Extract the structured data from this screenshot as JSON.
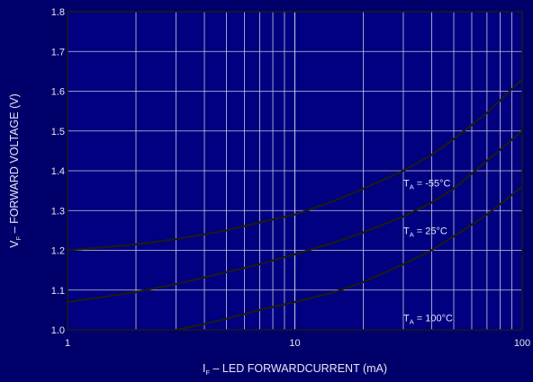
{
  "chart_data": {
    "type": "line",
    "title": "",
    "xscale": "log",
    "xlim": [
      1,
      100
    ],
    "ylim": [
      1.0,
      1.8
    ],
    "x_ticks": [
      "1",
      "10",
      "100"
    ],
    "y_ticks": [
      "1.0",
      "1.1",
      "1.2",
      "1.3",
      "1.4",
      "1.5",
      "1.6",
      "1.7",
      "1.8"
    ],
    "xlabel": {
      "main": "I",
      "sub": "F",
      "rest": " – LED FORWARDCURRENT (mA)"
    },
    "ylabel": {
      "main": "V",
      "sub": "F",
      "rest": " – FORWARD VOLTAGE (V)"
    },
    "grid": true,
    "colors": {
      "background": "#00006b",
      "plot_area": "#000080",
      "grid": "#c8c8dc",
      "curve": "#1a1a1a",
      "text": "#e6e6f4"
    },
    "series": [
      {
        "label": {
          "main": "T",
          "sub": "A",
          "rest": " = -55°C"
        },
        "label_at": [
          30,
          1.37
        ],
        "x": [
          1,
          2,
          3,
          5,
          7,
          10,
          15,
          20,
          30,
          40,
          50,
          70,
          100
        ],
        "y": [
          1.2,
          1.215,
          1.228,
          1.25,
          1.27,
          1.29,
          1.325,
          1.355,
          1.4,
          1.44,
          1.48,
          1.545,
          1.63
        ]
      },
      {
        "label": {
          "main": "T",
          "sub": "A",
          "rest": " = 25°C"
        },
        "label_at": [
          30,
          1.25
        ],
        "x": [
          1,
          2,
          3,
          5,
          7,
          10,
          15,
          20,
          30,
          40,
          50,
          70,
          100
        ],
        "y": [
          1.07,
          1.095,
          1.115,
          1.145,
          1.165,
          1.19,
          1.22,
          1.245,
          1.285,
          1.32,
          1.355,
          1.425,
          1.5
        ]
      },
      {
        "label": {
          "main": "T",
          "sub": "A",
          "rest": " = 100°C"
        },
        "label_at": [
          30,
          1.03
        ],
        "x": [
          3,
          4,
          5,
          7,
          10,
          15,
          20,
          30,
          40,
          50,
          70,
          100
        ],
        "y": [
          1.0,
          1.015,
          1.028,
          1.05,
          1.07,
          1.095,
          1.12,
          1.165,
          1.2,
          1.235,
          1.29,
          1.36
        ]
      }
    ]
  }
}
